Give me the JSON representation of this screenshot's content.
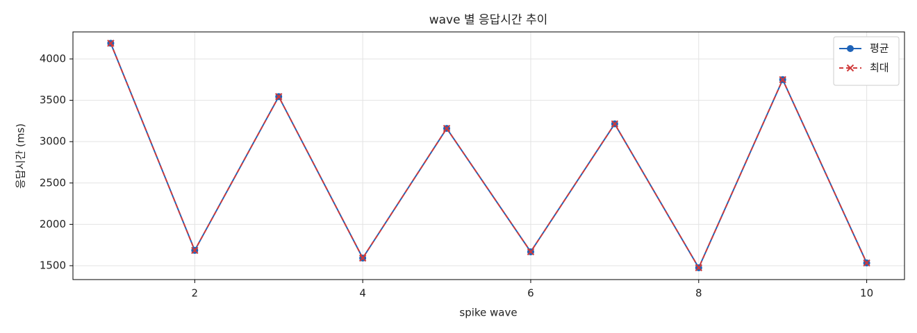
{
  "chart_data": {
    "type": "line",
    "title": "wave 별 응답시간 추이",
    "xlabel": "spike wave",
    "ylabel": "응답시간 (ms)",
    "x": [
      1,
      2,
      3,
      4,
      5,
      6,
      7,
      8,
      9,
      10
    ],
    "series": [
      {
        "name": "평균",
        "color": "#1f63b8",
        "linestyle": "solid",
        "marker": "circle",
        "values": [
          4190,
          1685,
          3545,
          1592,
          3160,
          1668,
          3215,
          1475,
          3750,
          1533
        ]
      },
      {
        "name": "최대",
        "color": "#d03a3a",
        "linestyle": "dashed",
        "marker": "x",
        "values": [
          4190,
          1685,
          3545,
          1592,
          3160,
          1668,
          3215,
          1475,
          3750,
          1533
        ]
      }
    ],
    "xlim": [
      0.55,
      10.45
    ],
    "ylim": [
      1332,
      4327
    ],
    "xticks": [
      2,
      4,
      6,
      8,
      10
    ],
    "yticks": [
      1500,
      2000,
      2500,
      3000,
      3500,
      4000
    ],
    "grid": true,
    "legend": "upper right"
  }
}
